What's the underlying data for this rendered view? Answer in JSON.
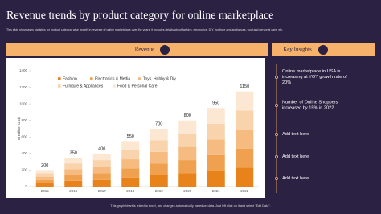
{
  "slide": {
    "title": "Revenue trends by product category for online marketplace",
    "subtitle": "This slide showcases statistics for product category wise growth in revenue of online marketplace over the years. It includes details about fashion, electronics, DIY, furniture and appliances, food and personal care, etc.",
    "footer": "This graph/chart is linked to excel, and changes automatically based on data. Just left click on it and select \"Edit Data\"."
  },
  "chart_data": {
    "type": "bar",
    "stacked": true,
    "title": "Revenue",
    "y_label": "In million US$",
    "categories": [
      "2015",
      "2016",
      "2017",
      "2018",
      "2019",
      "2020",
      "2021",
      "2022"
    ],
    "series": [
      {
        "name": "Fashion",
        "color": "#e8821a",
        "values": [
          40,
          70,
          80,
          110,
          140,
          160,
          190,
          230
        ]
      },
      {
        "name": "Electronics & Media",
        "color": "#f0a14f",
        "values": [
          40,
          70,
          80,
          110,
          140,
          160,
          190,
          230
        ]
      },
      {
        "name": "Toys, Hobby & Diy",
        "color": "#f5bb80",
        "values": [
          40,
          70,
          80,
          110,
          140,
          160,
          190,
          230
        ]
      },
      {
        "name": "Furniture & Appliances",
        "color": "#f9d3ab",
        "values": [
          40,
          70,
          80,
          110,
          140,
          160,
          190,
          230
        ]
      },
      {
        "name": "Food & Personal Care",
        "color": "#fce7d3",
        "values": [
          40,
          70,
          80,
          110,
          140,
          160,
          190,
          230
        ]
      }
    ],
    "totals": [
      200,
      350,
      400,
      550,
      700,
      800,
      950,
      1150
    ],
    "ylim": [
      0,
      1400
    ],
    "yticks": [
      0,
      200,
      400,
      600,
      800,
      1000,
      1200,
      1400
    ],
    "grid": false
  },
  "insights": {
    "title": "Key Insights",
    "items": [
      "Online marketplace in USA is increasing at YOY growth rate of 20%",
      "Number of Online Shoppers increased by 15% in 2022",
      "Add text here",
      "Add text here",
      "Add text here"
    ]
  }
}
